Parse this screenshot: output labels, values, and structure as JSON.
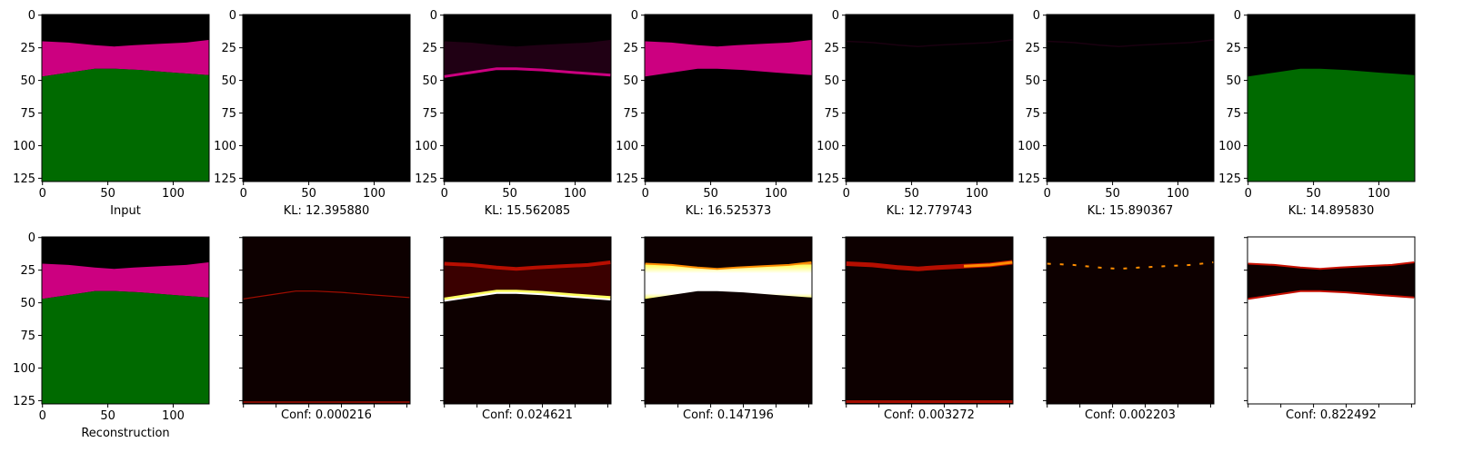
{
  "figure": {
    "top_row_kind": "segmentation-masks",
    "bottom_row_kind": "confidence-heatmaps",
    "colors": {
      "background": "#000000",
      "magenta": "#cc0080",
      "green": "#006a00",
      "heat_dark": "#0d0000",
      "heat_red": "#c81000",
      "heat_orange": "#ff8c00",
      "heat_yellow": "#ffff60",
      "heat_white": "#ffffff"
    }
  },
  "chart_data": [
    {
      "type": "heatmap",
      "row": 0,
      "panel": 0,
      "xlabel": "Input",
      "content": "full-segmentation",
      "xlim": [
        0,
        127
      ],
      "ylim": [
        127,
        0
      ],
      "xticks": [
        0,
        50,
        100
      ],
      "yticks": [
        0,
        25,
        50,
        75,
        100,
        125
      ]
    },
    {
      "type": "heatmap",
      "row": 0,
      "panel": 1,
      "xlabel": "KL: 12.395880",
      "content": "empty",
      "xlim": [
        0,
        127
      ],
      "ylim": [
        127,
        0
      ],
      "xticks": [
        0,
        50,
        100
      ],
      "yticks": [
        0,
        25,
        50,
        75,
        100,
        125
      ]
    },
    {
      "type": "heatmap",
      "row": 0,
      "panel": 2,
      "xlabel": "KL: 15.562085",
      "content": "faint-magenta-band",
      "xlim": [
        0,
        127
      ],
      "ylim": [
        127,
        0
      ],
      "xticks": [
        0,
        50,
        100
      ],
      "yticks": [
        0,
        25,
        50,
        75,
        100,
        125
      ]
    },
    {
      "type": "heatmap",
      "row": 0,
      "panel": 3,
      "xlabel": "KL: 16.525373",
      "content": "magenta-band",
      "xlim": [
        0,
        127
      ],
      "ylim": [
        127,
        0
      ],
      "xticks": [
        0,
        50,
        100
      ],
      "yticks": [
        0,
        25,
        50,
        75,
        100,
        125
      ]
    },
    {
      "type": "heatmap",
      "row": 0,
      "panel": 4,
      "xlabel": "KL: 12.779743",
      "content": "near-empty",
      "xlim": [
        0,
        127
      ],
      "ylim": [
        127,
        0
      ],
      "xticks": [
        0,
        50,
        100
      ],
      "yticks": [
        0,
        25,
        50,
        75,
        100,
        125
      ]
    },
    {
      "type": "heatmap",
      "row": 0,
      "panel": 5,
      "xlabel": "KL: 15.890367",
      "content": "near-empty",
      "xlim": [
        0,
        127
      ],
      "ylim": [
        127,
        0
      ],
      "xticks": [
        0,
        50,
        100
      ],
      "yticks": [
        0,
        25,
        50,
        75,
        100,
        125
      ]
    },
    {
      "type": "heatmap",
      "row": 0,
      "panel": 6,
      "xlabel": "KL: 14.895830",
      "content": "green-region",
      "xlim": [
        0,
        127
      ],
      "ylim": [
        127,
        0
      ],
      "xticks": [
        0,
        50,
        100
      ],
      "yticks": [
        0,
        25,
        50,
        75,
        100,
        125
      ]
    },
    {
      "type": "heatmap",
      "row": 1,
      "panel": 0,
      "xlabel": "Reconstruction",
      "content": "full-segmentation",
      "xlim": [
        0,
        127
      ],
      "ylim": [
        127,
        0
      ],
      "xticks": [
        0,
        50,
        100
      ],
      "yticks": [
        0,
        25,
        50,
        75,
        100,
        125
      ]
    },
    {
      "type": "heatmap",
      "row": 1,
      "panel": 1,
      "xlabel": "Conf: 0.000216",
      "content": "heat-faint-boundary",
      "value": 0.000216
    },
    {
      "type": "heatmap",
      "row": 1,
      "panel": 2,
      "xlabel": "Conf: 0.024621",
      "content": "heat-boundaries",
      "value": 0.024621
    },
    {
      "type": "heatmap",
      "row": 1,
      "panel": 3,
      "xlabel": "Conf: 0.147196",
      "content": "heat-band",
      "value": 0.147196
    },
    {
      "type": "heatmap",
      "row": 1,
      "panel": 4,
      "xlabel": "Conf: 0.003272",
      "content": "heat-upper-boundary",
      "value": 0.003272
    },
    {
      "type": "heatmap",
      "row": 1,
      "panel": 5,
      "xlabel": "Conf: 0.002203",
      "content": "heat-dotted-boundary",
      "value": 0.002203
    },
    {
      "type": "heatmap",
      "row": 1,
      "panel": 6,
      "xlabel": "Conf: 0.822492",
      "content": "heat-lower-region",
      "value": 0.822492
    }
  ]
}
